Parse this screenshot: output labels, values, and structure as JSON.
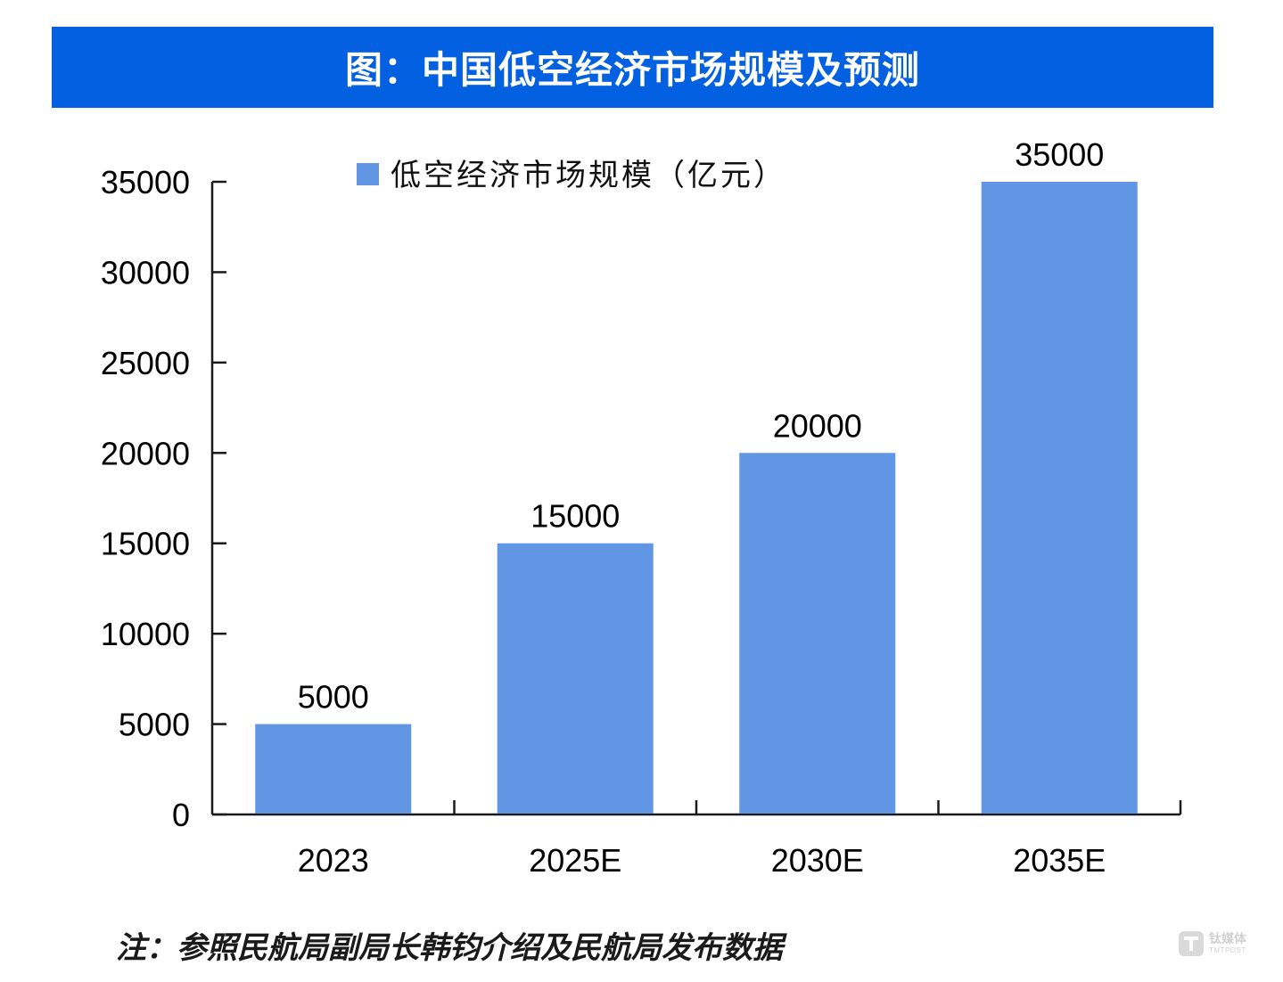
{
  "title": "图：中国低空经济市场规模及预测",
  "footnote": "注：参照民航局副局长韩钧介绍及民航局发布数据",
  "watermark": {
    "brand_cn": "钛媒体",
    "brand_en": "TMTPOST",
    "icon": "tmtpost-logo-icon"
  },
  "colors": {
    "banner": "#0360e1",
    "bar": "#6196e4",
    "axis": "#1a1a1a",
    "text": "#000000"
  },
  "chart_data": {
    "type": "bar",
    "title": "图：中国低空经济市场规模及预测",
    "categories": [
      "2023",
      "2025E",
      "2030E",
      "2035E"
    ],
    "series": [
      {
        "name": "低空经济市场规模（亿元）",
        "values": [
          5000,
          15000,
          20000,
          35000
        ]
      }
    ],
    "data_labels": [
      "5000",
      "15000",
      "20000",
      "35000"
    ],
    "xlabel": "",
    "ylabel": "",
    "ylim": [
      0,
      35000
    ],
    "yticks": [
      0,
      5000,
      10000,
      15000,
      20000,
      25000,
      30000,
      35000
    ],
    "grid": false,
    "legend_position": "top-center"
  }
}
